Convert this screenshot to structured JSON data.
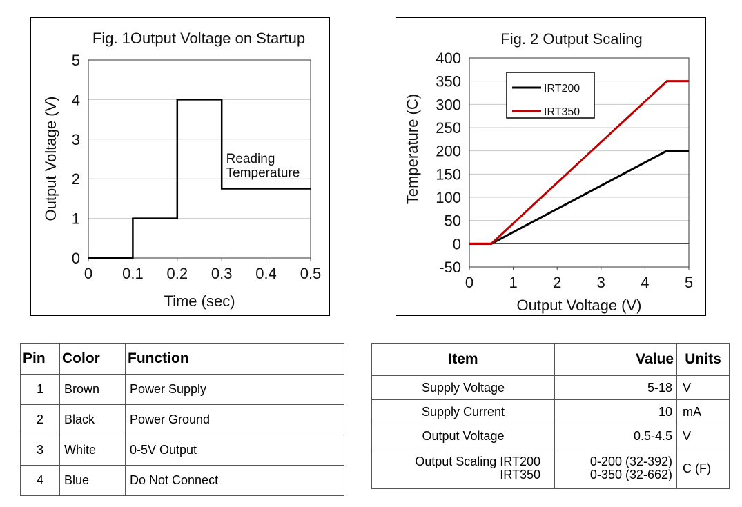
{
  "fig1": {
    "chart_data": {
      "type": "line",
      "title": "Fig. 1Output Voltage on Startup",
      "xlabel": "Time (sec)",
      "ylabel": "Output Voltage (V)",
      "xlim": [
        0,
        0.5
      ],
      "ylim": [
        0,
        5
      ],
      "xticks": [
        "0",
        "0.1",
        "0.2",
        "0.3",
        "0.4",
        "0.5"
      ],
      "yticks": [
        "0",
        "1",
        "2",
        "3",
        "4",
        "5"
      ],
      "grid": "horizontal",
      "series": [
        {
          "color": "#000000",
          "x": [
            0,
            0.1,
            0.1,
            0.2,
            0.2,
            0.3,
            0.3,
            0.5
          ],
          "y": [
            0,
            0,
            1,
            1,
            4,
            4,
            1.75,
            1.75
          ]
        }
      ],
      "annotations": [
        {
          "text": "Reading",
          "x": 0.31,
          "y": 2.4
        },
        {
          "text": "Temperature",
          "x": 0.31,
          "y": 2.05
        }
      ]
    }
  },
  "fig2": {
    "chart_data": {
      "type": "line",
      "title": "Fig. 2 Output Scaling",
      "xlabel": "Output Voltage (V)",
      "ylabel": "Temperature (C)",
      "xlim": [
        0,
        5
      ],
      "ylim": [
        -50,
        400
      ],
      "xticks": [
        "0",
        "1",
        "2",
        "3",
        "4",
        "5"
      ],
      "yticks": [
        "-50",
        "0",
        "50",
        "100",
        "150",
        "200",
        "250",
        "300",
        "350",
        "400"
      ],
      "grid": "horizontal",
      "legend_position": "top-left",
      "series": [
        {
          "name": "IRT200",
          "color": "#000000",
          "x": [
            0,
            0.5,
            4.5,
            5
          ],
          "y": [
            0,
            0,
            200,
            200
          ]
        },
        {
          "name": "IRT350",
          "color": "#c00000",
          "x": [
            0,
            0.5,
            4.5,
            5
          ],
          "y": [
            0,
            0,
            350,
            350
          ]
        }
      ]
    }
  },
  "pin_table": {
    "headers": [
      "Pin",
      "Color",
      "Function"
    ],
    "rows": [
      [
        "1",
        "Brown",
        "Power Supply"
      ],
      [
        "2",
        "Black",
        "Power Ground"
      ],
      [
        "3",
        "White",
        "0-5V Output"
      ],
      [
        "4",
        "Blue",
        "Do Not Connect"
      ]
    ]
  },
  "spec_table": {
    "headers": [
      "Item",
      "Value",
      "Units"
    ],
    "rows": [
      [
        "Supply Voltage",
        "5-18",
        "V"
      ],
      [
        "Supply Current",
        "10",
        "mA"
      ],
      [
        "Output Voltage",
        "0.5-4.5",
        "V"
      ]
    ],
    "scaling": {
      "item_line1": "Output Scaling IRT200",
      "item_line2": "IRT350",
      "value_line1": "0-200 (32-392)",
      "value_line2": "0-350 (32-662)",
      "unit": "C (F)"
    }
  }
}
